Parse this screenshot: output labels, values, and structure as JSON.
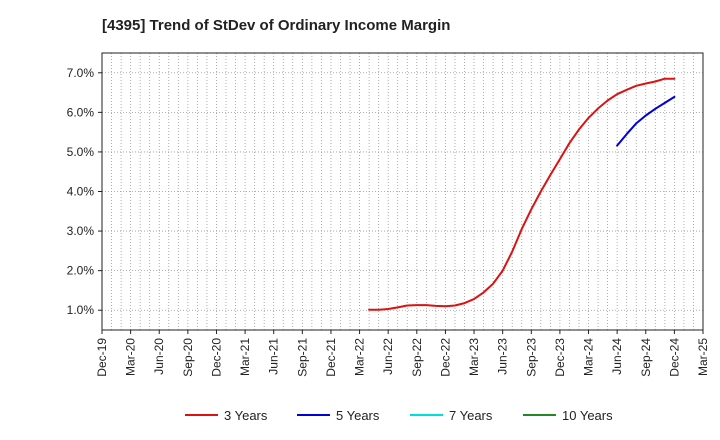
{
  "chart_data": {
    "type": "line",
    "title": "[4395]  Trend of StDev of Ordinary Income Margin",
    "xlabel": "",
    "ylabel": "",
    "x_ticks": [
      "Dec-19",
      "Mar-20",
      "Jun-20",
      "Sep-20",
      "Dec-20",
      "Mar-21",
      "Jun-21",
      "Sep-21",
      "Dec-21",
      "Mar-22",
      "Jun-22",
      "Sep-22",
      "Dec-22",
      "Mar-23",
      "Jun-23",
      "Sep-23",
      "Dec-23",
      "Mar-24",
      "Jun-24",
      "Sep-24",
      "Dec-24",
      "Mar-25"
    ],
    "y_ticks": [
      "1.0%",
      "2.0%",
      "3.0%",
      "4.0%",
      "5.0%",
      "6.0%",
      "7.0%"
    ],
    "y_tick_values": [
      1,
      2,
      3,
      4,
      5,
      6,
      7
    ],
    "ylim": [
      0.5,
      7.5
    ],
    "xlim": [
      "Dec-19",
      "Mar-25"
    ],
    "grid": true,
    "legend_position": "bottom",
    "series": [
      {
        "name": "3 Years",
        "color": "#dd1111",
        "x": [
          "Apr-22",
          "May-22",
          "Jun-22",
          "Jul-22",
          "Aug-22",
          "Sep-22",
          "Oct-22",
          "Nov-22",
          "Dec-22",
          "Jan-23",
          "Feb-23",
          "Mar-23",
          "Apr-23",
          "May-23",
          "Jun-23",
          "Jul-23",
          "Aug-23",
          "Sep-23",
          "Oct-23",
          "Nov-23",
          "Dec-23",
          "Jan-24",
          "Feb-24",
          "Mar-24",
          "Apr-24",
          "May-24",
          "Jun-24",
          "Jul-24",
          "Aug-24",
          "Sep-24",
          "Oct-24",
          "Nov-24",
          "Dec-24"
        ],
        "values": [
          1.01,
          1.01,
          1.03,
          1.07,
          1.12,
          1.13,
          1.13,
          1.11,
          1.1,
          1.12,
          1.18,
          1.28,
          1.45,
          1.67,
          2.0,
          2.48,
          3.05,
          3.55,
          4.0,
          4.42,
          4.82,
          5.22,
          5.57,
          5.86,
          6.1,
          6.3,
          6.46,
          6.57,
          6.67,
          6.73,
          6.78,
          6.85,
          6.85
        ]
      },
      {
        "name": "5 Years",
        "color": "#0000dd",
        "x": [
          "Jun-24",
          "Jul-24",
          "Aug-24",
          "Sep-24",
          "Oct-24",
          "Nov-24",
          "Dec-24"
        ],
        "values": [
          5.16,
          5.45,
          5.72,
          5.92,
          6.09,
          6.24,
          6.39
        ]
      },
      {
        "name": "7 Years",
        "color": "#00dddd",
        "x": [],
        "values": []
      },
      {
        "name": "10 Years",
        "color": "#228822",
        "x": [],
        "values": []
      }
    ]
  }
}
